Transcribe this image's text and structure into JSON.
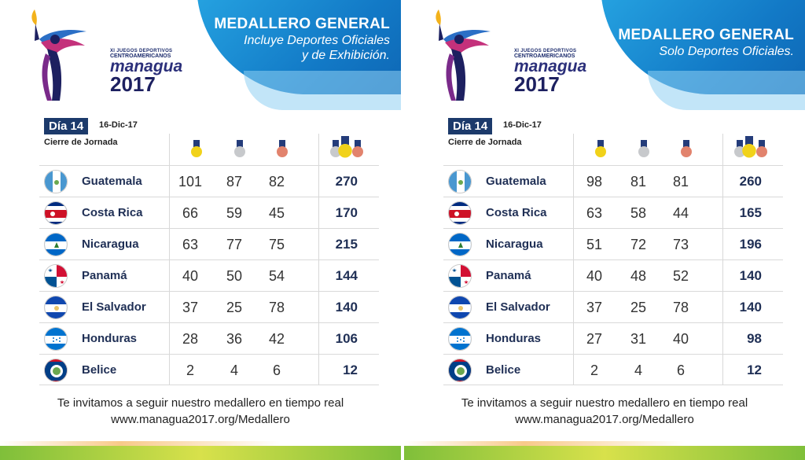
{
  "logo": {
    "line1": "XI JUEGOS DEPORTIVOS",
    "line2": "CENTROAMERICANOS",
    "line3": "managua",
    "line4": "2017"
  },
  "panels": [
    {
      "title": "MEDALLERO GENERAL",
      "subtitle_line1": "Incluye Deportes Oficiales",
      "subtitle_line2": "y de Exhibición.",
      "dia": "Día 14",
      "fecha": "16-Dic-17",
      "cierre": "Cierre de Jornada",
      "rows": [
        {
          "country": "Guatemala",
          "gold": "101",
          "silver": "87",
          "bronze": "82",
          "total": "270"
        },
        {
          "country": "Costa Rica",
          "gold": "66",
          "silver": "59",
          "bronze": "45",
          "total": "170"
        },
        {
          "country": "Nicaragua",
          "gold": "63",
          "silver": "77",
          "bronze": "75",
          "total": "215"
        },
        {
          "country": "Panamá",
          "gold": "40",
          "silver": "50",
          "bronze": "54",
          "total": "144"
        },
        {
          "country": "El Salvador",
          "gold": "37",
          "silver": "25",
          "bronze": "78",
          "total": "140"
        },
        {
          "country": "Honduras",
          "gold": "28",
          "silver": "36",
          "bronze": "42",
          "total": "106"
        },
        {
          "country": "Belice",
          "gold": "2",
          "silver": "4",
          "bronze": "6",
          "total": "12"
        }
      ],
      "footer_line1": "Te invitamos a seguir nuestro medallero en tiempo real",
      "footer_line2": "www.managua2017.org/Medallero"
    },
    {
      "title": "MEDALLERO GENERAL",
      "subtitle_line1": "Solo Deportes Oficiales.",
      "subtitle_line2": "",
      "dia": "Día 14",
      "fecha": "16-Dic-17",
      "cierre": "Cierre de Jornada",
      "rows": [
        {
          "country": "Guatemala",
          "gold": "98",
          "silver": "81",
          "bronze": "81",
          "total": "260"
        },
        {
          "country": "Costa Rica",
          "gold": "63",
          "silver": "58",
          "bronze": "44",
          "total": "165"
        },
        {
          "country": "Nicaragua",
          "gold": "51",
          "silver": "72",
          "bronze": "73",
          "total": "196"
        },
        {
          "country": "Panamá",
          "gold": "40",
          "silver": "48",
          "bronze": "52",
          "total": "140"
        },
        {
          "country": "El Salvador",
          "gold": "37",
          "silver": "25",
          "bronze": "78",
          "total": "140"
        },
        {
          "country": "Honduras",
          "gold": "27",
          "silver": "31",
          "bronze": "40",
          "total": "98"
        },
        {
          "country": "Belice",
          "gold": "2",
          "silver": "4",
          "bronze": "6",
          "total": "12"
        }
      ],
      "footer_line1": "Te invitamos a seguir nuestro medallero en tiempo real",
      "footer_line2": "www.managua2017.org/Medallero"
    }
  ],
  "colors": {
    "navy": "#1c3a6b",
    "blue": "#1279c6",
    "gold": "#f1d21a",
    "silver": "#c7c9cc",
    "bronze": "#e2836d"
  }
}
